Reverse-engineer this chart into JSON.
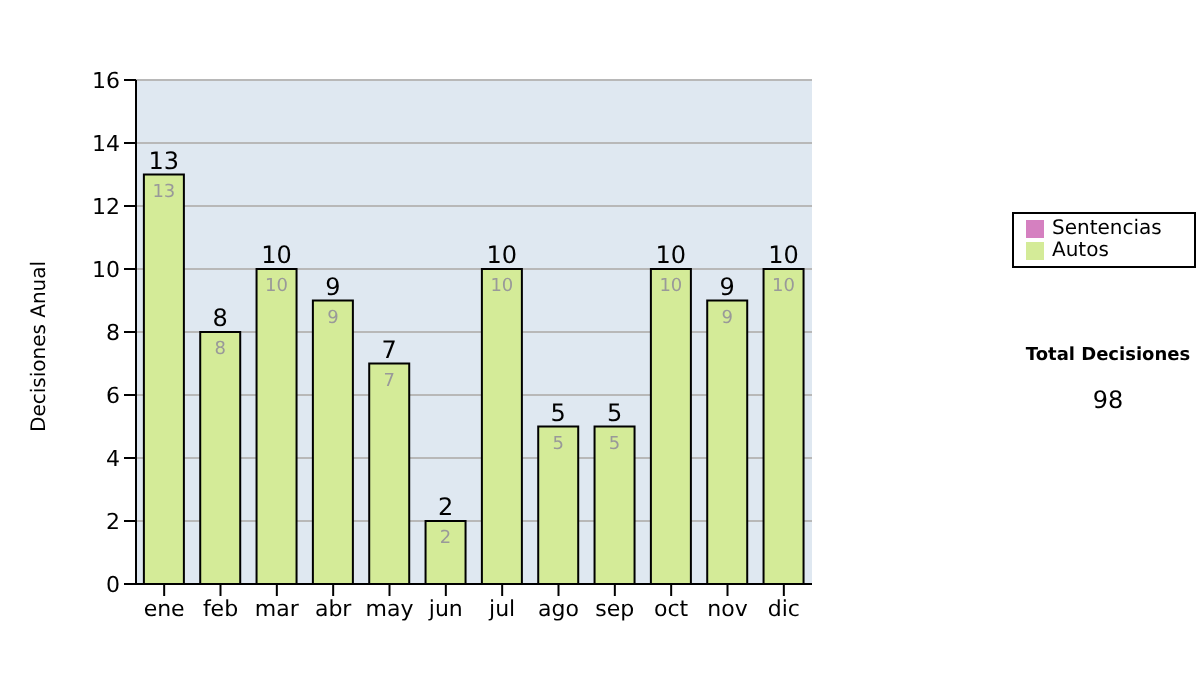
{
  "chart_data": {
    "type": "bar",
    "ylabel": "Decisiones Anual",
    "categories": [
      "ene",
      "feb",
      "mar",
      "abr",
      "may",
      "jun",
      "jul",
      "ago",
      "sep",
      "oct",
      "nov",
      "dic"
    ],
    "series": [
      {
        "name": "Sentencias",
        "color": "#d580c0",
        "values": [
          0,
          0,
          0,
          0,
          0,
          0,
          0,
          0,
          0,
          0,
          0,
          0
        ]
      },
      {
        "name": "Autos",
        "color": "#d4eb98",
        "values": [
          13,
          8,
          10,
          9,
          7,
          2,
          10,
          5,
          5,
          10,
          9,
          10
        ],
        "value_labels": [
          "13",
          "8",
          "10",
          "9",
          "7",
          "2",
          "10",
          "5",
          "5",
          "10",
          "9",
          "10"
        ]
      }
    ],
    "stacked": true,
    "totals": [
      "13",
      "8",
      "10",
      "9",
      "7",
      "2",
      "10",
      "5",
      "5",
      "10",
      "9",
      "10"
    ],
    "ylim": [
      0,
      16
    ],
    "yticks": [
      0,
      2,
      4,
      6,
      8,
      10,
      12,
      14,
      16
    ],
    "grid": "y",
    "legend": "right",
    "annotations": [
      "Total Decisiones",
      "98"
    ]
  }
}
